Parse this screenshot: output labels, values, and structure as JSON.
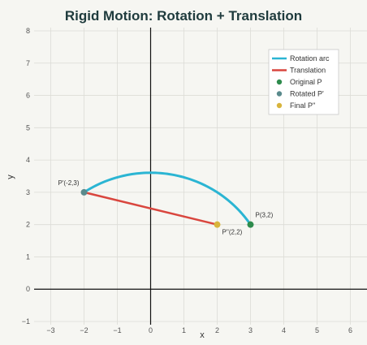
{
  "chart_data": {
    "type": "line",
    "title": "Rigid Motion: Rotation + Translation",
    "xlabel": "x",
    "ylabel": "y",
    "xlim": [
      -3.5,
      6.5
    ],
    "ylim": [
      -1.1,
      8.1
    ],
    "grid": true,
    "xticks": [
      -3,
      -2,
      -1,
      0,
      1,
      2,
      3,
      4,
      5,
      6
    ],
    "yticks": [
      -1,
      0,
      1,
      2,
      3,
      4,
      5,
      6,
      7,
      8
    ],
    "legend_position": "top-right",
    "rotation_center": [
      0,
      0
    ],
    "series": [
      {
        "name": "Rotation arc",
        "kind": "arc",
        "color": "#2bb5d3",
        "from_point": [
          3,
          2
        ],
        "to_point": [
          -2,
          3
        ],
        "center": [
          0,
          0
        ]
      },
      {
        "name": "Translation",
        "kind": "line",
        "color": "#d9463e",
        "points": [
          [
            -2,
            3
          ],
          [
            2,
            2
          ]
        ]
      },
      {
        "name": "Original P",
        "kind": "point",
        "color": "#2e8b4d",
        "x": 3,
        "y": 2,
        "label": "P(3,2)"
      },
      {
        "name": "Rotated P'",
        "kind": "point",
        "color": "#5a8a8c",
        "x": -2,
        "y": 3,
        "label": "P'(-2,3)"
      },
      {
        "name": "Final P''",
        "kind": "point",
        "color": "#d8b43c",
        "x": 2,
        "y": 2,
        "label": "P''(2,2)"
      }
    ]
  }
}
